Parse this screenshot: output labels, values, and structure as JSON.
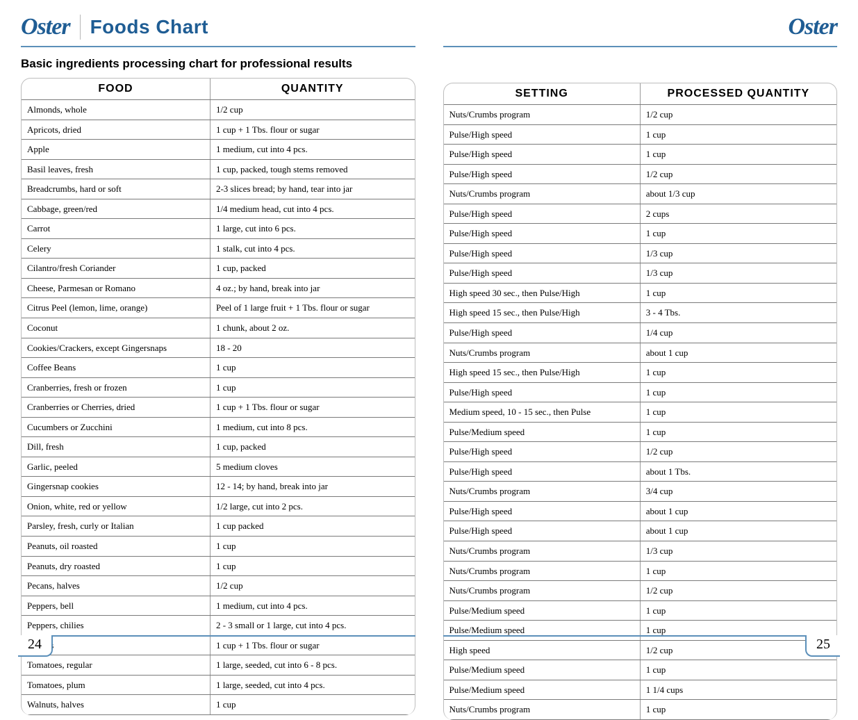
{
  "brand": "Oster",
  "title": "Foods Chart",
  "subtitle": "Basic ingredients processing chart for professional results",
  "page_left_num": "24",
  "page_right_num": "25",
  "left_table": {
    "headers": [
      "FOOD",
      "Quantity"
    ],
    "rows": [
      [
        "Almonds, whole",
        "1/2 cup"
      ],
      [
        "Apricots, dried",
        "1 cup + 1 Tbs. flour or sugar"
      ],
      [
        "Apple",
        "1 medium, cut into 4 pcs."
      ],
      [
        "Basil leaves, fresh",
        "1 cup, packed, tough stems removed"
      ],
      [
        "Breadcrumbs, hard or soft",
        "2-3 slices bread; by hand, tear into jar"
      ],
      [
        "Cabbage, green/red",
        "1/4 medium head, cut into 4 pcs."
      ],
      [
        "Carrot",
        "1 large, cut into 6 pcs."
      ],
      [
        "Celery",
        "1 stalk, cut into 4 pcs."
      ],
      [
        "Cilantro/fresh Coriander",
        "1 cup, packed"
      ],
      [
        "Cheese, Parmesan or Romano",
        "4 oz.; by hand, break into jar"
      ],
      [
        "Citrus Peel (lemon, lime, orange)",
        "Peel of 1 large fruit + 1 Tbs. flour or sugar"
      ],
      [
        "Coconut",
        "1 chunk, about 2 oz."
      ],
      [
        "Cookies/Crackers, except Gingersnaps",
        "18 - 20"
      ],
      [
        "Coffee Beans",
        "1 cup"
      ],
      [
        "Cranberries, fresh or frozen",
        "1 cup"
      ],
      [
        "Cranberries or Cherries, dried",
        "1 cup + 1 Tbs. flour or sugar"
      ],
      [
        "Cucumbers or Zucchini",
        "1 medium, cut into 8 pcs."
      ],
      [
        "Dill, fresh",
        "1 cup, packed"
      ],
      [
        "Garlic, peeled",
        "5 medium cloves"
      ],
      [
        "Gingersnap cookies",
        "12 - 14; by hand, break into jar"
      ],
      [
        "Onion, white, red or yellow",
        "1/2 large, cut into 2 pcs."
      ],
      [
        "Parsley, fresh, curly or Italian",
        "1 cup packed"
      ],
      [
        "Peanuts, oil roasted",
        "1 cup"
      ],
      [
        "Peanuts, dry roasted",
        "1 cup"
      ],
      [
        "Pecans, halves",
        "1/2 cup"
      ],
      [
        "Peppers, bell",
        "1 medium, cut into 4 pcs."
      ],
      [
        "Peppers, chilies",
        "2 - 3 small or 1 large, cut into 4 pcs."
      ],
      [
        "Raisins",
        "1 cup + 1 Tbs. flour or sugar"
      ],
      [
        "Tomatoes, regular",
        "1 large, seeded, cut into 6 - 8 pcs."
      ],
      [
        "Tomatoes, plum",
        "1 large, seeded, cut into 4 pcs."
      ],
      [
        "Walnuts, halves",
        "1 cup"
      ]
    ]
  },
  "right_table": {
    "headers": [
      "Setting",
      "Processed Quantity"
    ],
    "rows": [
      [
        "Nuts/Crumbs program",
        "1/2 cup"
      ],
      [
        "Pulse/High speed",
        "1 cup"
      ],
      [
        "Pulse/High speed",
        "1 cup"
      ],
      [
        "Pulse/High speed",
        "1/2 cup"
      ],
      [
        "Nuts/Crumbs program",
        "about 1/3 cup"
      ],
      [
        "Pulse/High speed",
        "2 cups"
      ],
      [
        "Pulse/High speed",
        "1 cup"
      ],
      [
        "Pulse/High speed",
        "1/3 cup"
      ],
      [
        "Pulse/High speed",
        "1/3 cup"
      ],
      [
        "High speed 30 sec., then Pulse/High",
        "1 cup"
      ],
      [
        "High speed 15 sec., then Pulse/High",
        "3 - 4 Tbs."
      ],
      [
        "Pulse/High speed",
        "1/4 cup"
      ],
      [
        "Nuts/Crumbs program",
        "about 1 cup"
      ],
      [
        "High speed 15 sec., then Pulse/High",
        "1 cup"
      ],
      [
        "Pulse/High speed",
        "1 cup"
      ],
      [
        "Medium speed, 10 - 15 sec., then Pulse",
        "1 cup"
      ],
      [
        "Pulse/Medium speed",
        "1 cup"
      ],
      [
        "Pulse/High speed",
        "1/2 cup"
      ],
      [
        "Pulse/High speed",
        "about 1 Tbs."
      ],
      [
        "Nuts/Crumbs program",
        "3/4 cup"
      ],
      [
        "Pulse/High speed",
        "about 1 cup"
      ],
      [
        "Pulse/High speed",
        "about 1 cup"
      ],
      [
        "Nuts/Crumbs program",
        "1/3 cup"
      ],
      [
        "Nuts/Crumbs program",
        "1 cup"
      ],
      [
        "Nuts/Crumbs program",
        "1/2 cup"
      ],
      [
        "Pulse/Medium speed",
        "1 cup"
      ],
      [
        "Pulse/Medium speed",
        "1 cup"
      ],
      [
        "High speed",
        "1/2 cup"
      ],
      [
        "Pulse/Medium speed",
        "1 cup"
      ],
      [
        "Pulse/Medium speed",
        "1 1/4 cups"
      ],
      [
        "Nuts/Crumbs program",
        "1 cup"
      ]
    ]
  },
  "styles": {
    "accent_color": "#1f5d94",
    "rule_color": "#5b8fb9",
    "border_color": "#7a7a7a",
    "header_font": "Arial Narrow",
    "body_font": "Georgia",
    "title_fontsize_pt": 21,
    "subtitle_fontsize_pt": 13,
    "th_fontsize_pt": 12,
    "td_fontsize_pt": 10
  }
}
